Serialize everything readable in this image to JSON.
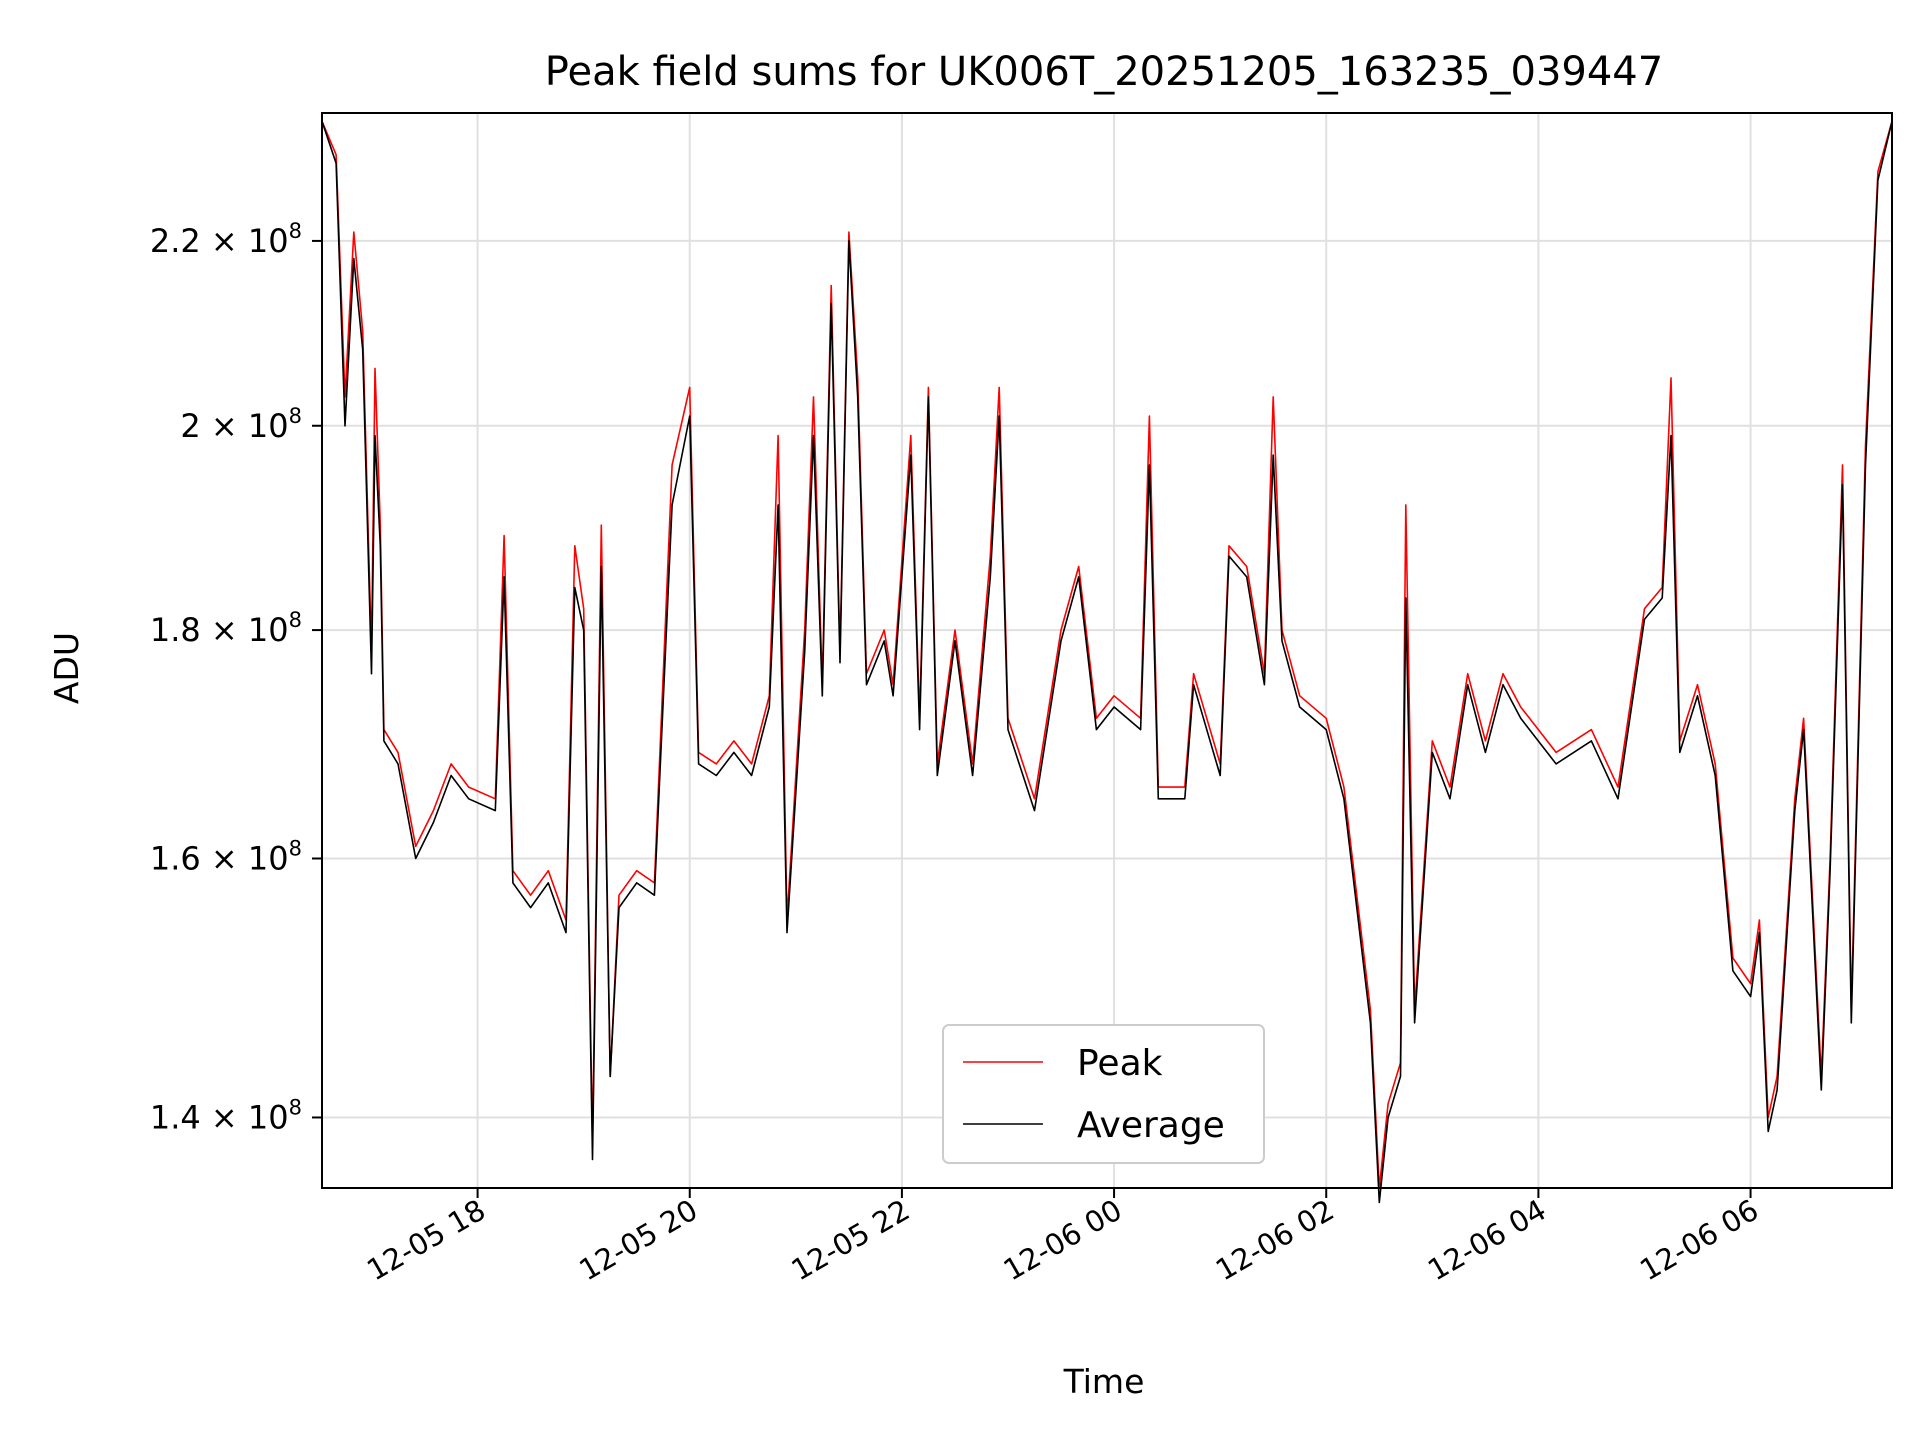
{
  "chart_data": {
    "type": "line",
    "title": "Peak field sums for UK006T_20251205_163235_039447",
    "xlabel": "Time",
    "ylabel": "ADU",
    "x_axis": {
      "type": "time",
      "range": [
        "2025-12-05T16:32",
        "2025-12-06T07:20"
      ],
      "ticks": [
        {
          "value": "2025-12-05T18:00",
          "label": "12-05 18"
        },
        {
          "value": "2025-12-05T20:00",
          "label": "12-05 20"
        },
        {
          "value": "2025-12-05T22:00",
          "label": "12-05 22"
        },
        {
          "value": "2025-12-06T00:00",
          "label": "12-06 00"
        },
        {
          "value": "2025-12-06T02:00",
          "label": "12-06 02"
        },
        {
          "value": "2025-12-06T04:00",
          "label": "12-06 04"
        },
        {
          "value": "2025-12-06T06:00",
          "label": "12-06 06"
        }
      ]
    },
    "y_axis": {
      "scale": "log",
      "range": [
        135000000,
        235000000
      ],
      "ticks": [
        {
          "value": 140000000,
          "mantissa": "1.4",
          "label": "1.4 × 10^8"
        },
        {
          "value": 160000000,
          "mantissa": "1.6",
          "label": "1.6 × 10^8"
        },
        {
          "value": 180000000,
          "mantissa": "1.8",
          "label": "1.8 × 10^8"
        },
        {
          "value": 200000000,
          "mantissa": "2",
          "label": "2 × 10^8"
        },
        {
          "value": 220000000,
          "mantissa": "2.2",
          "label": "2.2 × 10^8"
        }
      ],
      "exponent": "8"
    },
    "grid": true,
    "legend": {
      "position": "lower-center"
    },
    "series": [
      {
        "name": "Peak",
        "color": "#ff0000",
        "points": [
          [
            "2025-12-05T16:32",
            234000000
          ],
          [
            "2025-12-05T16:40",
            230000000
          ],
          [
            "2025-12-05T16:45",
            203000000
          ],
          [
            "2025-12-05T16:50",
            221000000
          ],
          [
            "2025-12-05T16:55",
            210000000
          ],
          [
            "2025-12-05T17:00",
            178000000
          ],
          [
            "2025-12-05T17:02",
            206000000
          ],
          [
            "2025-12-05T17:05",
            190000000
          ],
          [
            "2025-12-05T17:07",
            171000000
          ],
          [
            "2025-12-05T17:15",
            169000000
          ],
          [
            "2025-12-05T17:25",
            161000000
          ],
          [
            "2025-12-05T17:35",
            164000000
          ],
          [
            "2025-12-05T17:45",
            168000000
          ],
          [
            "2025-12-05T17:55",
            166000000
          ],
          [
            "2025-12-05T18:10",
            165000000
          ],
          [
            "2025-12-05T18:15",
            189000000
          ],
          [
            "2025-12-05T18:20",
            159000000
          ],
          [
            "2025-12-05T18:30",
            157000000
          ],
          [
            "2025-12-05T18:40",
            159000000
          ],
          [
            "2025-12-05T18:50",
            155000000
          ],
          [
            "2025-12-05T18:55",
            188000000
          ],
          [
            "2025-12-05T19:00",
            182000000
          ],
          [
            "2025-12-05T19:05",
            138000000
          ],
          [
            "2025-12-05T19:10",
            190000000
          ],
          [
            "2025-12-05T19:15",
            143000000
          ],
          [
            "2025-12-05T19:20",
            157000000
          ],
          [
            "2025-12-05T19:30",
            159000000
          ],
          [
            "2025-12-05T19:40",
            158000000
          ],
          [
            "2025-12-05T19:50",
            196000000
          ],
          [
            "2025-12-05T20:00",
            204000000
          ],
          [
            "2025-12-05T20:05",
            169000000
          ],
          [
            "2025-12-05T20:15",
            168000000
          ],
          [
            "2025-12-05T20:25",
            170000000
          ],
          [
            "2025-12-05T20:35",
            168000000
          ],
          [
            "2025-12-05T20:45",
            174000000
          ],
          [
            "2025-12-05T20:50",
            199000000
          ],
          [
            "2025-12-05T20:55",
            155000000
          ],
          [
            "2025-12-05T21:05",
            180000000
          ],
          [
            "2025-12-05T21:10",
            203000000
          ],
          [
            "2025-12-05T21:15",
            175000000
          ],
          [
            "2025-12-05T21:20",
            215000000
          ],
          [
            "2025-12-05T21:25",
            178000000
          ],
          [
            "2025-12-05T21:30",
            221000000
          ],
          [
            "2025-12-05T21:35",
            205000000
          ],
          [
            "2025-12-05T21:40",
            176000000
          ],
          [
            "2025-12-05T21:50",
            180000000
          ],
          [
            "2025-12-05T21:55",
            175000000
          ],
          [
            "2025-12-05T22:05",
            199000000
          ],
          [
            "2025-12-05T22:10",
            172000000
          ],
          [
            "2025-12-05T22:15",
            204000000
          ],
          [
            "2025-12-05T22:20",
            168000000
          ],
          [
            "2025-12-05T22:30",
            180000000
          ],
          [
            "2025-12-05T22:40",
            168000000
          ],
          [
            "2025-12-05T22:50",
            187000000
          ],
          [
            "2025-12-05T22:55",
            204000000
          ],
          [
            "2025-12-05T23:00",
            172000000
          ],
          [
            "2025-12-05T23:15",
            165000000
          ],
          [
            "2025-12-05T23:30",
            180000000
          ],
          [
            "2025-12-05T23:40",
            186000000
          ],
          [
            "2025-12-05T23:50",
            172000000
          ],
          [
            "2025-12-06T00:00",
            174000000
          ],
          [
            "2025-12-06T00:15",
            172000000
          ],
          [
            "2025-12-06T00:20",
            201000000
          ],
          [
            "2025-12-06T00:25",
            166000000
          ],
          [
            "2025-12-06T00:40",
            166000000
          ],
          [
            "2025-12-06T00:45",
            176000000
          ],
          [
            "2025-12-06T01:00",
            168000000
          ],
          [
            "2025-12-06T01:05",
            188000000
          ],
          [
            "2025-12-06T01:15",
            186000000
          ],
          [
            "2025-12-06T01:25",
            176000000
          ],
          [
            "2025-12-06T01:30",
            203000000
          ],
          [
            "2025-12-06T01:35",
            180000000
          ],
          [
            "2025-12-06T01:45",
            174000000
          ],
          [
            "2025-12-06T02:00",
            172000000
          ],
          [
            "2025-12-06T02:10",
            166000000
          ],
          [
            "2025-12-06T02:25",
            148000000
          ],
          [
            "2025-12-06T02:30",
            135000000
          ],
          [
            "2025-12-06T02:35",
            141000000
          ],
          [
            "2025-12-06T02:42",
            144000000
          ],
          [
            "2025-12-06T02:45",
            192000000
          ],
          [
            "2025-12-06T02:50",
            148000000
          ],
          [
            "2025-12-06T03:00",
            170000000
          ],
          [
            "2025-12-06T03:10",
            166000000
          ],
          [
            "2025-12-06T03:20",
            176000000
          ],
          [
            "2025-12-06T03:30",
            170000000
          ],
          [
            "2025-12-06T03:40",
            176000000
          ],
          [
            "2025-12-06T03:50",
            173000000
          ],
          [
            "2025-12-06T04:10",
            169000000
          ],
          [
            "2025-12-06T04:30",
            171000000
          ],
          [
            "2025-12-06T04:45",
            166000000
          ],
          [
            "2025-12-06T05:00",
            182000000
          ],
          [
            "2025-12-06T05:10",
            184000000
          ],
          [
            "2025-12-06T05:15",
            205000000
          ],
          [
            "2025-12-06T05:20",
            170000000
          ],
          [
            "2025-12-06T05:30",
            175000000
          ],
          [
            "2025-12-06T05:40",
            168000000
          ],
          [
            "2025-12-06T05:50",
            152000000
          ],
          [
            "2025-12-06T06:00",
            150000000
          ],
          [
            "2025-12-06T06:05",
            155000000
          ],
          [
            "2025-12-06T06:10",
            140000000
          ],
          [
            "2025-12-06T06:15",
            143000000
          ],
          [
            "2025-12-06T06:25",
            165000000
          ],
          [
            "2025-12-06T06:30",
            172000000
          ],
          [
            "2025-12-06T06:40",
            143000000
          ],
          [
            "2025-12-06T06:45",
            160000000
          ],
          [
            "2025-12-06T06:52",
            196000000
          ],
          [
            "2025-12-06T06:57",
            148000000
          ],
          [
            "2025-12-06T07:05",
            198000000
          ],
          [
            "2025-12-06T07:12",
            228000000
          ],
          [
            "2025-12-06T07:20",
            234000000
          ]
        ]
      },
      {
        "name": "Average",
        "color": "#000000",
        "points": [
          [
            "2025-12-05T16:32",
            234000000
          ],
          [
            "2025-12-05T16:40",
            229000000
          ],
          [
            "2025-12-05T16:45",
            200000000
          ],
          [
            "2025-12-05T16:50",
            218000000
          ],
          [
            "2025-12-05T16:55",
            208000000
          ],
          [
            "2025-12-05T17:00",
            176000000
          ],
          [
            "2025-12-05T17:02",
            199000000
          ],
          [
            "2025-12-05T17:05",
            188000000
          ],
          [
            "2025-12-05T17:07",
            170000000
          ],
          [
            "2025-12-05T17:15",
            168000000
          ],
          [
            "2025-12-05T17:25",
            160000000
          ],
          [
            "2025-12-05T17:35",
            163000000
          ],
          [
            "2025-12-05T17:45",
            167000000
          ],
          [
            "2025-12-05T17:55",
            165000000
          ],
          [
            "2025-12-05T18:10",
            164000000
          ],
          [
            "2025-12-05T18:15",
            185000000
          ],
          [
            "2025-12-05T18:20",
            158000000
          ],
          [
            "2025-12-05T18:30",
            156000000
          ],
          [
            "2025-12-05T18:40",
            158000000
          ],
          [
            "2025-12-05T18:50",
            154000000
          ],
          [
            "2025-12-05T18:55",
            184000000
          ],
          [
            "2025-12-05T19:00",
            180000000
          ],
          [
            "2025-12-05T19:05",
            137000000
          ],
          [
            "2025-12-05T19:10",
            186000000
          ],
          [
            "2025-12-05T19:15",
            143000000
          ],
          [
            "2025-12-05T19:20",
            156000000
          ],
          [
            "2025-12-05T19:30",
            158000000
          ],
          [
            "2025-12-05T19:40",
            157000000
          ],
          [
            "2025-12-05T19:50",
            192000000
          ],
          [
            "2025-12-05T20:00",
            201000000
          ],
          [
            "2025-12-05T20:05",
            168000000
          ],
          [
            "2025-12-05T20:15",
            167000000
          ],
          [
            "2025-12-05T20:25",
            169000000
          ],
          [
            "2025-12-05T20:35",
            167000000
          ],
          [
            "2025-12-05T20:45",
            173000000
          ],
          [
            "2025-12-05T20:50",
            192000000
          ],
          [
            "2025-12-05T20:55",
            154000000
          ],
          [
            "2025-12-05T21:05",
            178000000
          ],
          [
            "2025-12-05T21:10",
            199000000
          ],
          [
            "2025-12-05T21:15",
            174000000
          ],
          [
            "2025-12-05T21:20",
            213000000
          ],
          [
            "2025-12-05T21:25",
            177000000
          ],
          [
            "2025-12-05T21:30",
            220000000
          ],
          [
            "2025-12-05T21:35",
            203000000
          ],
          [
            "2025-12-05T21:40",
            175000000
          ],
          [
            "2025-12-05T21:50",
            179000000
          ],
          [
            "2025-12-05T21:55",
            174000000
          ],
          [
            "2025-12-05T22:05",
            197000000
          ],
          [
            "2025-12-05T22:10",
            171000000
          ],
          [
            "2025-12-05T22:15",
            203000000
          ],
          [
            "2025-12-05T22:20",
            167000000
          ],
          [
            "2025-12-05T22:30",
            179000000
          ],
          [
            "2025-12-05T22:40",
            167000000
          ],
          [
            "2025-12-05T22:50",
            185000000
          ],
          [
            "2025-12-05T22:55",
            201000000
          ],
          [
            "2025-12-05T23:00",
            171000000
          ],
          [
            "2025-12-05T23:15",
            164000000
          ],
          [
            "2025-12-05T23:30",
            179000000
          ],
          [
            "2025-12-05T23:40",
            185000000
          ],
          [
            "2025-12-05T23:50",
            171000000
          ],
          [
            "2025-12-06T00:00",
            173000000
          ],
          [
            "2025-12-06T00:15",
            171000000
          ],
          [
            "2025-12-06T00:20",
            196000000
          ],
          [
            "2025-12-06T00:25",
            165000000
          ],
          [
            "2025-12-06T00:40",
            165000000
          ],
          [
            "2025-12-06T00:45",
            175000000
          ],
          [
            "2025-12-06T01:00",
            167000000
          ],
          [
            "2025-12-06T01:05",
            187000000
          ],
          [
            "2025-12-06T01:15",
            185000000
          ],
          [
            "2025-12-06T01:25",
            175000000
          ],
          [
            "2025-12-06T01:30",
            197000000
          ],
          [
            "2025-12-06T01:35",
            179000000
          ],
          [
            "2025-12-06T01:45",
            173000000
          ],
          [
            "2025-12-06T02:00",
            171000000
          ],
          [
            "2025-12-06T02:10",
            165000000
          ],
          [
            "2025-12-06T02:25",
            147000000
          ],
          [
            "2025-12-06T02:30",
            134000000
          ],
          [
            "2025-12-06T02:35",
            140000000
          ],
          [
            "2025-12-06T02:42",
            143000000
          ],
          [
            "2025-12-06T02:45",
            183000000
          ],
          [
            "2025-12-06T02:50",
            147000000
          ],
          [
            "2025-12-06T03:00",
            169000000
          ],
          [
            "2025-12-06T03:10",
            165000000
          ],
          [
            "2025-12-06T03:20",
            175000000
          ],
          [
            "2025-12-06T03:30",
            169000000
          ],
          [
            "2025-12-06T03:40",
            175000000
          ],
          [
            "2025-12-06T03:50",
            172000000
          ],
          [
            "2025-12-06T04:10",
            168000000
          ],
          [
            "2025-12-06T04:30",
            170000000
          ],
          [
            "2025-12-06T04:45",
            165000000
          ],
          [
            "2025-12-06T05:00",
            181000000
          ],
          [
            "2025-12-06T05:10",
            183000000
          ],
          [
            "2025-12-06T05:15",
            199000000
          ],
          [
            "2025-12-06T05:20",
            169000000
          ],
          [
            "2025-12-06T05:30",
            174000000
          ],
          [
            "2025-12-06T05:40",
            167000000
          ],
          [
            "2025-12-06T05:50",
            151000000
          ],
          [
            "2025-12-06T06:00",
            149000000
          ],
          [
            "2025-12-06T06:05",
            154000000
          ],
          [
            "2025-12-06T06:10",
            139000000
          ],
          [
            "2025-12-06T06:15",
            142000000
          ],
          [
            "2025-12-06T06:25",
            164000000
          ],
          [
            "2025-12-06T06:30",
            171000000
          ],
          [
            "2025-12-06T06:40",
            142000000
          ],
          [
            "2025-12-06T06:45",
            159000000
          ],
          [
            "2025-12-06T06:52",
            194000000
          ],
          [
            "2025-12-06T06:57",
            147000000
          ],
          [
            "2025-12-06T07:05",
            196000000
          ],
          [
            "2025-12-06T07:12",
            227000000
          ],
          [
            "2025-12-06T07:20",
            234000000
          ]
        ]
      }
    ]
  }
}
